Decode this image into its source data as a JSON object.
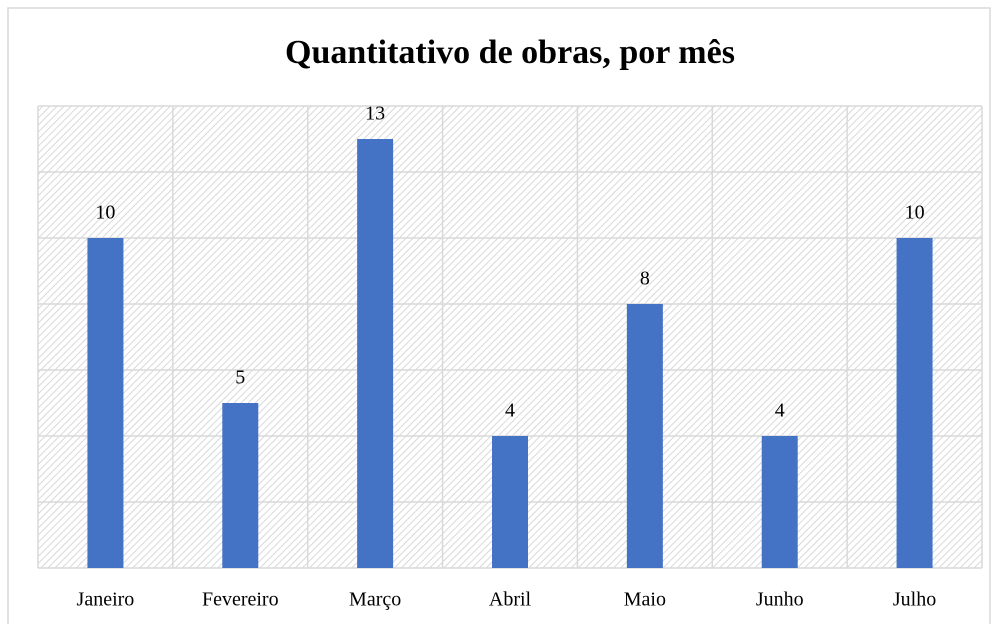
{
  "chart_data": {
    "type": "bar",
    "title": "Quantitativo de obras, por mês",
    "categories": [
      "Janeiro",
      "Fevereiro",
      "Março",
      "Abril",
      "Maio",
      "Junho",
      "Julho"
    ],
    "values": [
      10,
      5,
      13,
      4,
      8,
      4,
      10
    ],
    "color": "#4472c4",
    "ylim": [
      0,
      14
    ],
    "yticks": [
      0,
      2,
      4,
      6,
      8,
      10,
      12,
      14
    ],
    "grid": true
  }
}
